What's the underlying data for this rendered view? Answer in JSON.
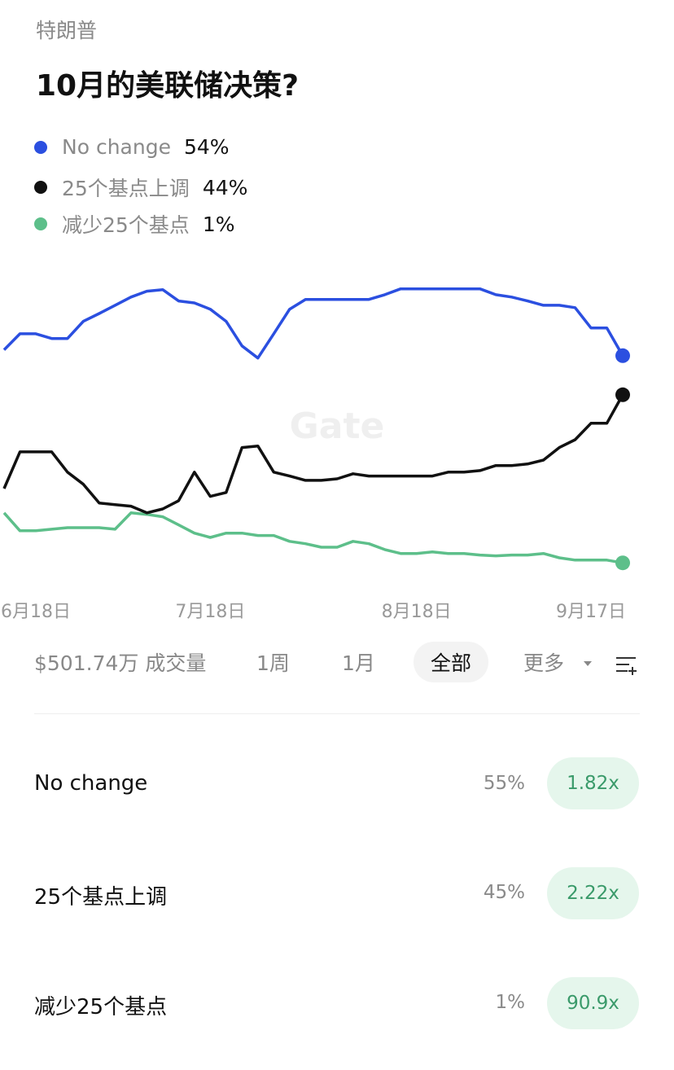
{
  "header": {
    "topic": "特朗普",
    "title": "10月的美联储决策?"
  },
  "chart_data": {
    "type": "line",
    "watermark": "Gate",
    "categories": [
      null,
      null,
      "6月18日",
      null,
      null,
      null,
      null,
      null,
      null,
      null,
      null,
      null,
      null,
      "7月18日",
      null,
      null,
      null,
      null,
      null,
      null,
      null,
      null,
      null,
      null,
      null,
      null,
      "8月18日",
      null,
      null,
      null,
      null,
      null,
      null,
      null,
      null,
      null,
      null,
      "9月17日",
      null,
      null
    ],
    "ylim": [
      0,
      100
    ],
    "series": [
      {
        "name": "No change",
        "color": "#2b4fe0",
        "value_label": "54%",
        "values": [
          55.5,
          59.6,
          59.6,
          58.4,
          58.4,
          62.8,
          64.8,
          66.9,
          69.0,
          70.5,
          70.9,
          68.0,
          67.5,
          65.9,
          62.8,
          56.5,
          53.4,
          59.6,
          65.9,
          68.4,
          68.4,
          68.4,
          68.4,
          68.4,
          69.6,
          71.1,
          71.1,
          71.1,
          71.1,
          71.1,
          71.1,
          69.6,
          69.0,
          68.0,
          66.9,
          66.9,
          66.3,
          61.1,
          61.1,
          54
        ]
      },
      {
        "name": "25个基点上调",
        "color": "#111111",
        "value_label": "44%",
        "values": [
          20.0,
          29.4,
          29.4,
          29.4,
          24.2,
          21.1,
          16.3,
          15.9,
          15.5,
          13.8,
          14.8,
          16.9,
          24.2,
          18.0,
          19.0,
          30.5,
          30.9,
          24.2,
          23.2,
          22.1,
          22.1,
          22.5,
          23.8,
          23.2,
          23.2,
          23.2,
          23.2,
          23.2,
          24.2,
          24.2,
          24.6,
          25.9,
          25.9,
          26.3,
          27.3,
          30.5,
          32.5,
          36.7,
          36.7,
          44
        ]
      },
      {
        "name": "减少25个基点",
        "color": "#5dbf8a",
        "value_label": "1%",
        "values": [
          13.8,
          9.2,
          9.2,
          9.6,
          10.0,
          10.0,
          10.0,
          9.6,
          13.8,
          13.4,
          12.8,
          10.7,
          8.6,
          7.5,
          8.6,
          8.6,
          8.0,
          8.0,
          6.5,
          5.9,
          5.0,
          5.0,
          6.5,
          5.9,
          4.4,
          3.4,
          3.4,
          3.8,
          3.4,
          3.4,
          3.0,
          2.8,
          3.0,
          3.0,
          3.4,
          2.3,
          1.7,
          1.7,
          1.7,
          1
        ]
      }
    ]
  },
  "controls": {
    "volume": "$501.74万 成交量",
    "tabs": [
      "1周",
      "1月",
      "全部",
      "更多"
    ]
  },
  "outcomes": [
    {
      "name": "No change",
      "probability": "55%",
      "payout": "1.82x"
    },
    {
      "name": "25个基点上调",
      "probability": "45%",
      "payout": "2.22x"
    },
    {
      "name": "减少25个基点",
      "probability": "1%",
      "payout": "90.9x"
    }
  ]
}
